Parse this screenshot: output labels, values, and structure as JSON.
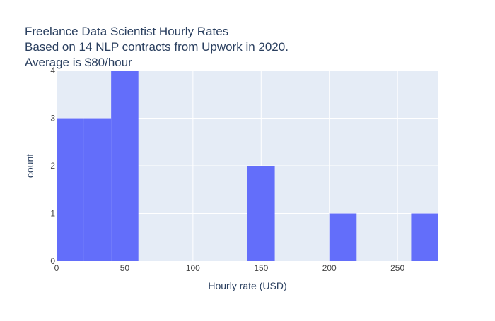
{
  "colors": {
    "plot_bg": "#e5ecf6",
    "grid": "#ffffff",
    "bar": "#636efa",
    "text": "#2a3f5f",
    "tick_text": "#444444"
  },
  "chart_data": {
    "type": "bar",
    "title_lines": [
      "Freelance Data Scientist Hourly Rates",
      "Based on 14 NLP contracts from Upwork in 2020.",
      "Average is $80/hour"
    ],
    "xlabel": "Hourly rate (USD)",
    "ylabel": "count",
    "xlim": [
      0,
      280
    ],
    "ylim": [
      0,
      4
    ],
    "x_ticks": [
      0,
      50,
      100,
      150,
      200,
      250
    ],
    "y_ticks": [
      0,
      1,
      2,
      3,
      4
    ],
    "grid": true,
    "bins": [
      {
        "x0": 0,
        "x1": 20,
        "count": 3
      },
      {
        "x0": 20,
        "x1": 40,
        "count": 3
      },
      {
        "x0": 40,
        "x1": 60,
        "count": 4
      },
      {
        "x0": 60,
        "x1": 80,
        "count": 0
      },
      {
        "x0": 80,
        "x1": 100,
        "count": 0
      },
      {
        "x0": 100,
        "x1": 120,
        "count": 0
      },
      {
        "x0": 120,
        "x1": 140,
        "count": 0
      },
      {
        "x0": 140,
        "x1": 160,
        "count": 2
      },
      {
        "x0": 160,
        "x1": 180,
        "count": 0
      },
      {
        "x0": 180,
        "x1": 200,
        "count": 0
      },
      {
        "x0": 200,
        "x1": 220,
        "count": 1
      },
      {
        "x0": 220,
        "x1": 240,
        "count": 0
      },
      {
        "x0": 240,
        "x1": 260,
        "count": 0
      },
      {
        "x0": 260,
        "x1": 280,
        "count": 1
      }
    ]
  }
}
